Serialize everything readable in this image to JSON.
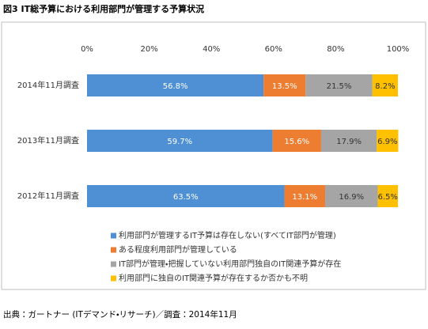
{
  "chart_data": {
    "type": "bar",
    "orientation": "horizontal",
    "stacked": true,
    "title": "図3 IT総予算における利用部門が管理する予算状況",
    "source": "出典：ガートナー (ITデマンド・リサーチ)／調査：2014年11月",
    "categories": [
      "2014年11月調査",
      "2013年11月調査",
      "2012年11月調査"
    ],
    "series": [
      {
        "name": "利用部門が管理するIT予算は存在しない(すべてIT部門が管理)",
        "color": "#4f8fd3",
        "values": [
          56.8,
          59.7,
          63.5
        ],
        "value_labels": [
          "56.8%",
          "59.7%",
          "63.5%"
        ]
      },
      {
        "name": "ある程度利用部門が管理している",
        "color": "#ed7d31",
        "values": [
          13.5,
          15.6,
          13.1
        ],
        "value_labels": [
          "13.5%",
          "15.6%",
          "13.1%"
        ]
      },
      {
        "name": "IT部門が管理・把握していない利用部門独自のIT関連予算が存在",
        "color": "#a5a5a5",
        "values": [
          21.5,
          17.9,
          16.9
        ],
        "value_labels": [
          "21.5%",
          "17.9%",
          "16.9%"
        ]
      },
      {
        "name": "利用部門に独自のIT関連予算が存在するか否かも不明",
        "color": "#ffc000",
        "values": [
          8.2,
          6.9,
          6.5
        ],
        "value_labels": [
          "8.2%",
          "6.9%",
          "6.5%"
        ]
      }
    ],
    "xlim": [
      0,
      100
    ],
    "xticks": [
      {
        "value": 0,
        "label": "0%"
      },
      {
        "value": 20,
        "label": "20%"
      },
      {
        "value": 40,
        "label": "40%"
      },
      {
        "value": 60,
        "label": "60%"
      },
      {
        "value": 80,
        "label": "80%"
      },
      {
        "value": 100,
        "label": "100%"
      }
    ],
    "legend": "bottom"
  }
}
